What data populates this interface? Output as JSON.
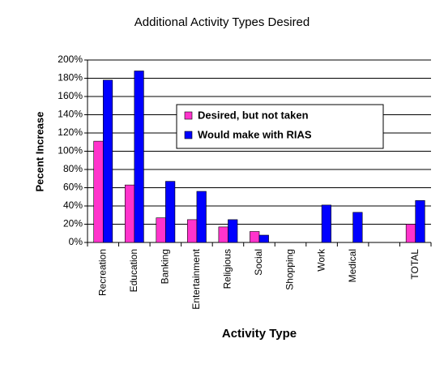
{
  "chart_data": {
    "type": "bar",
    "title": "Additional Activity Types Desired",
    "x_label": "Activity Type",
    "y_label": "Pecent Increase",
    "categories": [
      "Recreation",
      "Education",
      "Banking",
      "Entertainment",
      "Religious",
      "Social",
      "Shopping",
      "Work",
      "Medical",
      null,
      "TOTAL"
    ],
    "series": [
      {
        "name": "Desired, but not taken",
        "color": "#ff33cc",
        "values": [
          111,
          63,
          27,
          25,
          17,
          12,
          0,
          0,
          0,
          0,
          20
        ]
      },
      {
        "name": "Would make with RIAS",
        "color": "#0000ff",
        "values": [
          178,
          188,
          67,
          56,
          25,
          8,
          0,
          41,
          33,
          0,
          46
        ]
      }
    ],
    "ylim": [
      0,
      200
    ],
    "yticks": [
      {
        "value": 0,
        "label": "0%"
      },
      {
        "value": 20,
        "label": "20%"
      },
      {
        "value": 40,
        "label": "40%"
      },
      {
        "value": 60,
        "label": "60%"
      },
      {
        "value": 80,
        "label": "80%"
      },
      {
        "value": 100,
        "label": "100%"
      },
      {
        "value": 120,
        "label": "120%"
      },
      {
        "value": 140,
        "label": "140%"
      },
      {
        "value": 160,
        "label": "160%"
      },
      {
        "value": 180,
        "label": "180%"
      },
      {
        "value": 200,
        "label": "200%"
      }
    ],
    "grid": true,
    "legend": "upper-right"
  }
}
